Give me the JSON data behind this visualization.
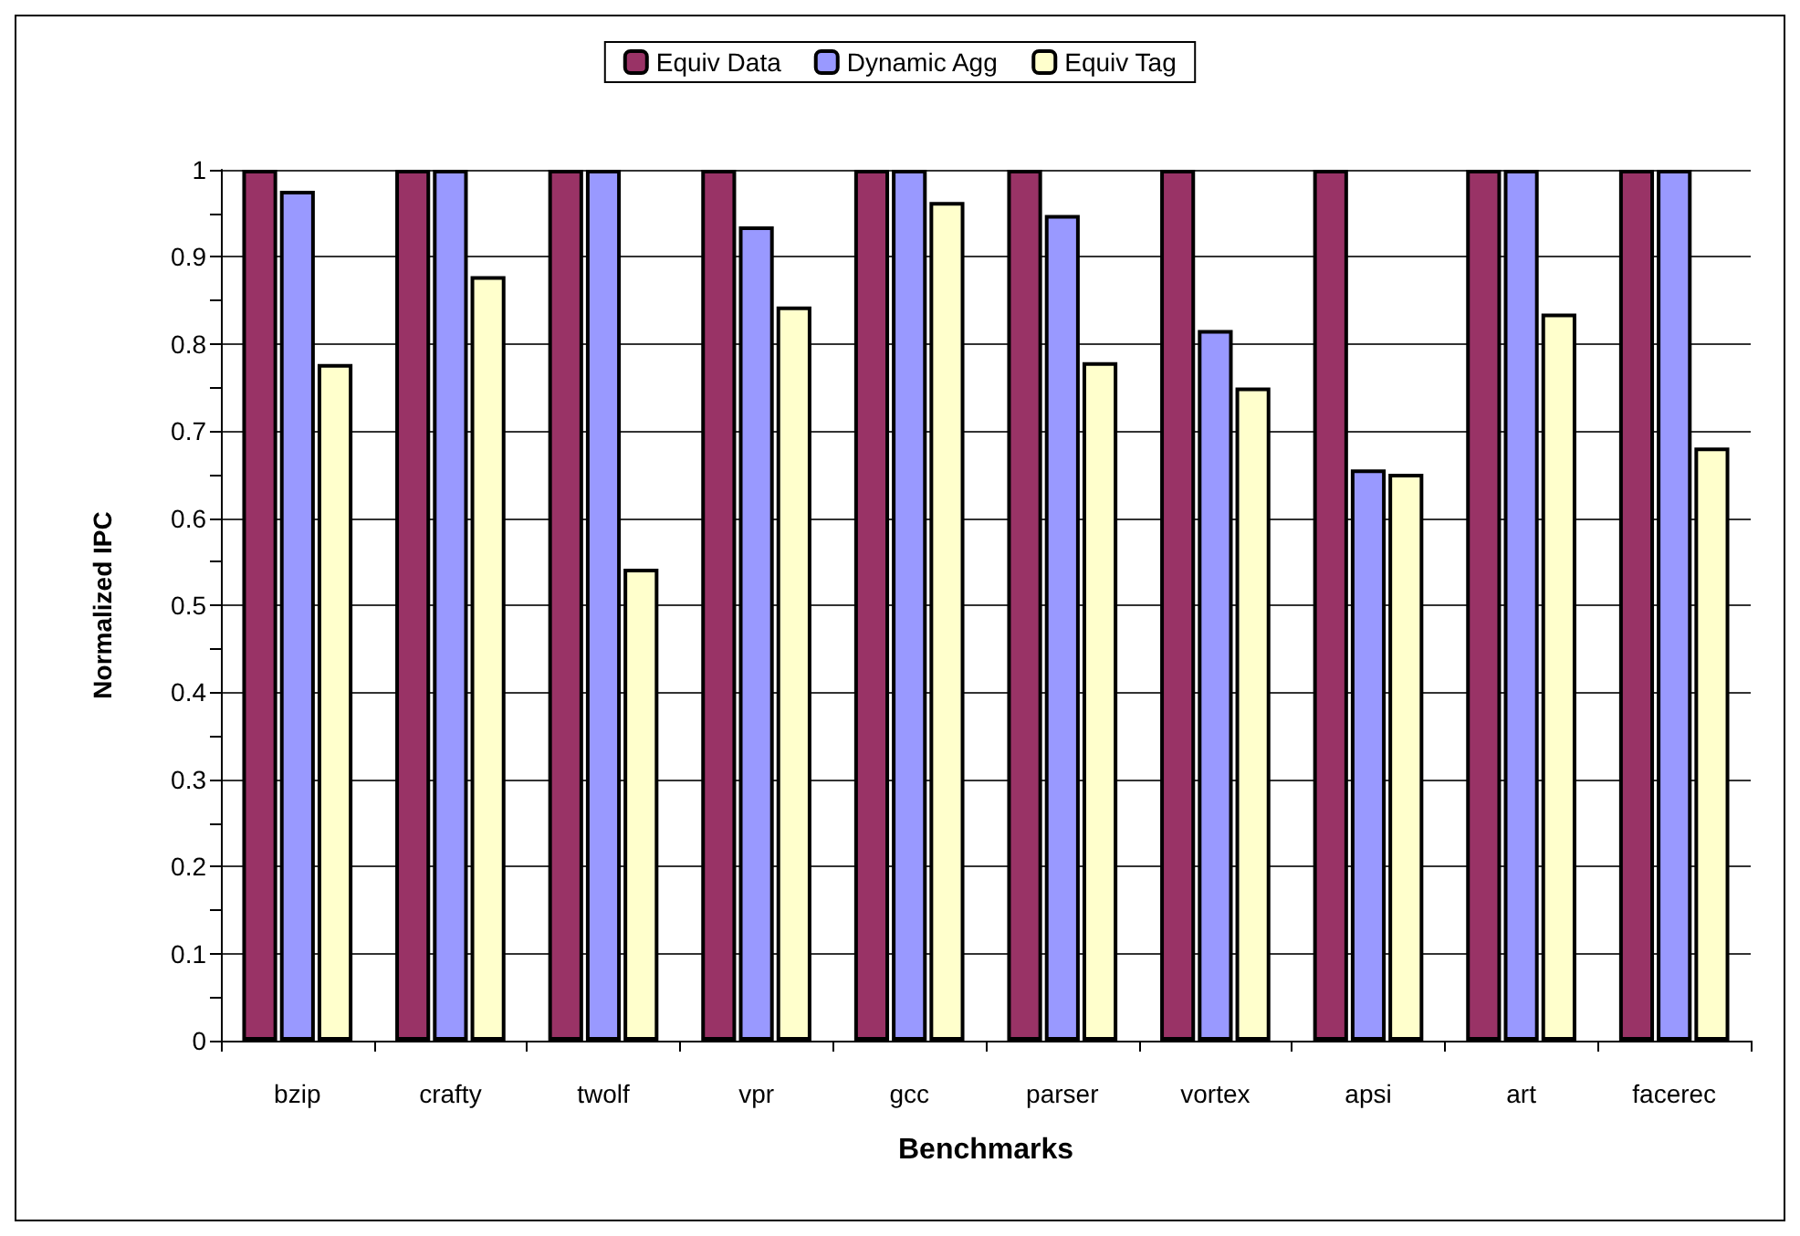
{
  "chart_data": {
    "type": "bar",
    "xlabel": "Benchmarks",
    "ylabel": "Normalized IPC",
    "categories": [
      "bzip",
      "crafty",
      "twolf",
      "vpr",
      "gcc",
      "parser",
      "vortex",
      "apsi",
      "art",
      "facerec"
    ],
    "series": [
      {
        "name": "Equiv Data",
        "color": "#993366",
        "values": [
          1,
          1,
          1,
          1,
          1,
          1,
          1,
          1,
          1,
          1
        ]
      },
      {
        "name": "Dynamic Agg",
        "color": "#9999ff",
        "values": [
          0.976,
          1,
          1,
          0.935,
          1,
          0.948,
          0.816,
          0.656,
          1,
          1
        ]
      },
      {
        "name": "Equiv Tag",
        "color": "#ffffcc",
        "values": [
          0.777,
          0.878,
          0.542,
          0.843,
          0.963,
          0.779,
          0.75,
          0.651,
          0.835,
          0.681
        ]
      }
    ],
    "ylim": [
      0,
      1
    ],
    "yticks": [
      0,
      {
        "value": 0.05,
        "label": null
      },
      0.1,
      {
        "value": 0.15,
        "label": null
      },
      0.2,
      {
        "value": 0.25,
        "label": null
      },
      0.3,
      {
        "value": 0.35,
        "label": null
      },
      0.4,
      {
        "value": 0.45,
        "label": null
      },
      0.5,
      {
        "value": 0.55,
        "label": null
      },
      0.6,
      {
        "value": 0.65,
        "label": null
      },
      0.7,
      {
        "value": 0.75,
        "label": null
      },
      0.8,
      {
        "value": 0.85,
        "label": null
      },
      0.9,
      {
        "value": 0.95,
        "label": null
      },
      1
    ],
    "grid": "y",
    "legend": "top"
  }
}
